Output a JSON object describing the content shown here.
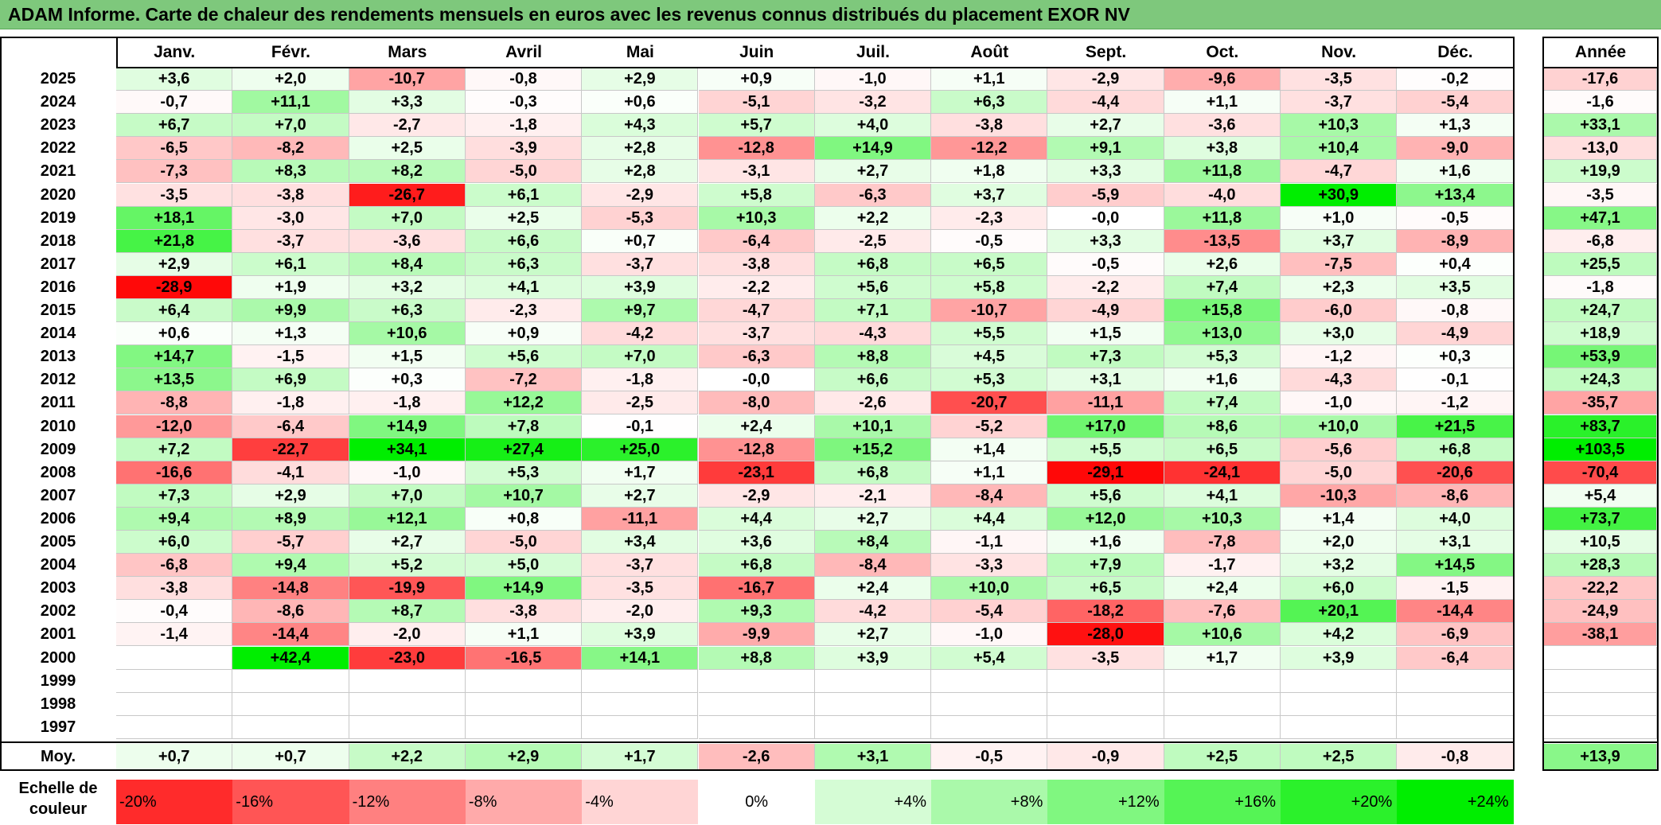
{
  "title": "ADAM Informe. Carte de chaleur des rendements mensuels en euros avec les revenus connus distribués du placement EXOR NV",
  "chart_data": {
    "type": "heatmap",
    "months": [
      "Janv.",
      "Févr.",
      "Mars",
      "Avril",
      "Mai",
      "Juin",
      "Juil.",
      "Août",
      "Sept.",
      "Oct.",
      "Nov.",
      "Déc."
    ],
    "annual_label": "Année",
    "rows": [
      {
        "year": "2025",
        "values": [
          "+3,6",
          "+2,0",
          "-10,7",
          "-0,8",
          "+2,9",
          "+0,9",
          "-1,0",
          "+1,1",
          "-2,9",
          "-9,6",
          "-3,5",
          "-0,2"
        ],
        "annual": "-17,6"
      },
      {
        "year": "2024",
        "values": [
          "-0,7",
          "+11,1",
          "+3,3",
          "-0,3",
          "+0,6",
          "-5,1",
          "-3,2",
          "+6,3",
          "-4,4",
          "+1,1",
          "-3,7",
          "-5,4"
        ],
        "annual": "-1,6"
      },
      {
        "year": "2023",
        "values": [
          "+6,7",
          "+7,0",
          "-2,7",
          "-1,8",
          "+4,3",
          "+5,7",
          "+4,0",
          "-3,8",
          "+2,7",
          "-3,6",
          "+10,3",
          "+1,3"
        ],
        "annual": "+33,1"
      },
      {
        "year": "2022",
        "values": [
          "-6,5",
          "-8,2",
          "+2,5",
          "-3,9",
          "+2,8",
          "-12,8",
          "+14,9",
          "-12,2",
          "+9,1",
          "+3,8",
          "+10,4",
          "-9,0"
        ],
        "annual": "-13,0"
      },
      {
        "year": "2021",
        "values": [
          "-7,3",
          "+8,3",
          "+8,2",
          "-5,0",
          "+2,8",
          "-3,1",
          "+2,7",
          "+1,8",
          "+3,3",
          "+11,8",
          "-4,7",
          "+1,6"
        ],
        "annual": "+19,9"
      },
      {
        "year": "2020",
        "values": [
          "-3,5",
          "-3,8",
          "-26,7",
          "+6,1",
          "-2,9",
          "+5,8",
          "-6,3",
          "+3,7",
          "-5,9",
          "-4,0",
          "+30,9",
          "+13,4"
        ],
        "annual": "-3,5"
      },
      {
        "year": "2019",
        "values": [
          "+18,1",
          "-3,0",
          "+7,0",
          "+2,5",
          "-5,3",
          "+10,3",
          "+2,2",
          "-2,3",
          "-0,0",
          "+11,8",
          "+1,0",
          "-0,5"
        ],
        "annual": "+47,1"
      },
      {
        "year": "2018",
        "values": [
          "+21,8",
          "-3,7",
          "-3,6",
          "+6,6",
          "+0,7",
          "-6,4",
          "-2,5",
          "-0,5",
          "+3,3",
          "-13,5",
          "+3,7",
          "-8,9"
        ],
        "annual": "-6,8"
      },
      {
        "year": "2017",
        "values": [
          "+2,9",
          "+6,1",
          "+8,4",
          "+6,3",
          "-3,7",
          "-3,8",
          "+6,8",
          "+6,5",
          "-0,5",
          "+2,6",
          "-7,5",
          "+0,4"
        ],
        "annual": "+25,5"
      },
      {
        "year": "2016",
        "values": [
          "-28,9",
          "+1,9",
          "+3,2",
          "+4,1",
          "+3,9",
          "-2,2",
          "+5,6",
          "+5,8",
          "-2,2",
          "+7,4",
          "+2,3",
          "+3,5"
        ],
        "annual": "-1,8"
      },
      {
        "year": "2015",
        "values": [
          "+6,4",
          "+9,9",
          "+6,3",
          "-2,3",
          "+9,7",
          "-4,7",
          "+7,1",
          "-10,7",
          "-4,9",
          "+15,8",
          "-6,0",
          "-0,8"
        ],
        "annual": "+24,7"
      },
      {
        "year": "2014",
        "values": [
          "+0,6",
          "+1,3",
          "+10,6",
          "+0,9",
          "-4,2",
          "-3,7",
          "-4,3",
          "+5,5",
          "+1,5",
          "+13,0",
          "+3,0",
          "-4,9"
        ],
        "annual": "+18,9"
      },
      {
        "year": "2013",
        "values": [
          "+14,7",
          "-1,5",
          "+1,5",
          "+5,6",
          "+7,0",
          "-6,3",
          "+8,8",
          "+4,5",
          "+7,3",
          "+5,3",
          "-1,2",
          "+0,3"
        ],
        "annual": "+53,9"
      },
      {
        "year": "2012",
        "values": [
          "+13,5",
          "+6,9",
          "+0,3",
          "-7,2",
          "-1,8",
          "-0,0",
          "+6,6",
          "+5,3",
          "+3,1",
          "+1,6",
          "-4,3",
          "-0,1"
        ],
        "annual": "+24,3"
      },
      {
        "year": "2011",
        "values": [
          "-8,8",
          "-1,8",
          "-1,8",
          "+12,2",
          "-2,5",
          "-8,0",
          "-2,6",
          "-20,7",
          "-11,1",
          "+7,4",
          "-1,0",
          "-1,2"
        ],
        "annual": "-35,7"
      },
      {
        "year": "2010",
        "values": [
          "-12,0",
          "-6,4",
          "+14,9",
          "+7,8",
          "-0,1",
          "+2,4",
          "+10,1",
          "-5,2",
          "+17,0",
          "+8,6",
          "+10,0",
          "+21,5"
        ],
        "annual": "+83,7"
      },
      {
        "year": "2009",
        "values": [
          "+7,2",
          "-22,7",
          "+34,1",
          "+27,4",
          "+25,0",
          "-12,8",
          "+15,2",
          "+1,4",
          "+5,5",
          "+6,5",
          "-5,6",
          "+6,8"
        ],
        "annual": "+103,5"
      },
      {
        "year": "2008",
        "values": [
          "-16,6",
          "-4,1",
          "-1,0",
          "+5,3",
          "+1,7",
          "-23,1",
          "+6,8",
          "+1,1",
          "-29,1",
          "-24,1",
          "-5,0",
          "-20,6"
        ],
        "annual": "-70,4"
      },
      {
        "year": "2007",
        "values": [
          "+7,3",
          "+2,9",
          "+7,0",
          "+10,7",
          "+2,7",
          "-2,9",
          "-2,1",
          "-8,4",
          "+5,6",
          "+4,1",
          "-10,3",
          "-8,6"
        ],
        "annual": "+5,4"
      },
      {
        "year": "2006",
        "values": [
          "+9,4",
          "+8,9",
          "+12,1",
          "+0,8",
          "-11,1",
          "+4,4",
          "+2,7",
          "+4,4",
          "+12,0",
          "+10,3",
          "+1,4",
          "+4,0"
        ],
        "annual": "+73,7"
      },
      {
        "year": "2005",
        "values": [
          "+6,0",
          "-5,7",
          "+2,7",
          "-5,0",
          "+3,4",
          "+3,6",
          "+8,4",
          "-1,1",
          "+1,6",
          "-7,8",
          "+2,0",
          "+3,1"
        ],
        "annual": "+10,5"
      },
      {
        "year": "2004",
        "values": [
          "-6,8",
          "+9,4",
          "+5,2",
          "+5,0",
          "-3,7",
          "+6,8",
          "-8,4",
          "-3,3",
          "+7,9",
          "-1,7",
          "+3,2",
          "+14,5"
        ],
        "annual": "+28,3"
      },
      {
        "year": "2003",
        "values": [
          "-3,8",
          "-14,8",
          "-19,9",
          "+14,9",
          "-3,5",
          "-16,7",
          "+2,4",
          "+10,0",
          "+6,5",
          "+2,4",
          "+6,0",
          "-1,5"
        ],
        "annual": "-22,2"
      },
      {
        "year": "2002",
        "values": [
          "-0,4",
          "-8,6",
          "+8,7",
          "-3,8",
          "-2,0",
          "+9,3",
          "-4,2",
          "-5,4",
          "-18,2",
          "-7,6",
          "+20,1",
          "-14,4"
        ],
        "annual": "-24,9"
      },
      {
        "year": "2001",
        "values": [
          "-1,4",
          "-14,4",
          "-2,0",
          "+1,1",
          "+3,9",
          "-9,9",
          "+2,7",
          "-1,0",
          "-28,0",
          "+10,6",
          "+4,2",
          "-6,9"
        ],
        "annual": "-38,1"
      },
      {
        "year": "2000",
        "values": [
          "",
          "+42,4",
          "-23,0",
          "-16,5",
          "+14,1",
          "+8,8",
          "+3,9",
          "+5,4",
          "-3,5",
          "+1,7",
          "+3,9",
          "-6,4"
        ],
        "annual": ""
      },
      {
        "year": "1999",
        "values": [
          "",
          "",
          "",
          "",
          "",
          "",
          "",
          "",
          "",
          "",
          "",
          ""
        ],
        "annual": ""
      },
      {
        "year": "1998",
        "values": [
          "",
          "",
          "",
          "",
          "",
          "",
          "",
          "",
          "",
          "",
          "",
          ""
        ],
        "annual": ""
      },
      {
        "year": "1997",
        "values": [
          "",
          "",
          "",
          "",
          "",
          "",
          "",
          "",
          "",
          "",
          "",
          ""
        ],
        "annual": ""
      }
    ],
    "average": {
      "label": "Moy.",
      "values": [
        "+0,7",
        "+0,7",
        "+2,2",
        "+2,9",
        "+1,7",
        "-2,6",
        "+3,1",
        "-0,5",
        "-0,9",
        "+2,5",
        "+2,5",
        "-0,8"
      ],
      "annual": "+13,9"
    },
    "color_scale": {
      "label": "Echelle de couleur",
      "steps": [
        "-20%",
        "-16%",
        "-12%",
        "-8%",
        "-4%",
        "0%",
        "+4%",
        "+8%",
        "+12%",
        "+16%",
        "+20%",
        "+24%"
      ],
      "step_values": [
        -20,
        -16,
        -12,
        -8,
        -4,
        0,
        4,
        8,
        12,
        16,
        20,
        24
      ]
    },
    "colors": {
      "negative": "#ff0000",
      "neutral": "#ffffff",
      "positive": "#00ee00",
      "title_bar": "#7ec87c"
    }
  }
}
